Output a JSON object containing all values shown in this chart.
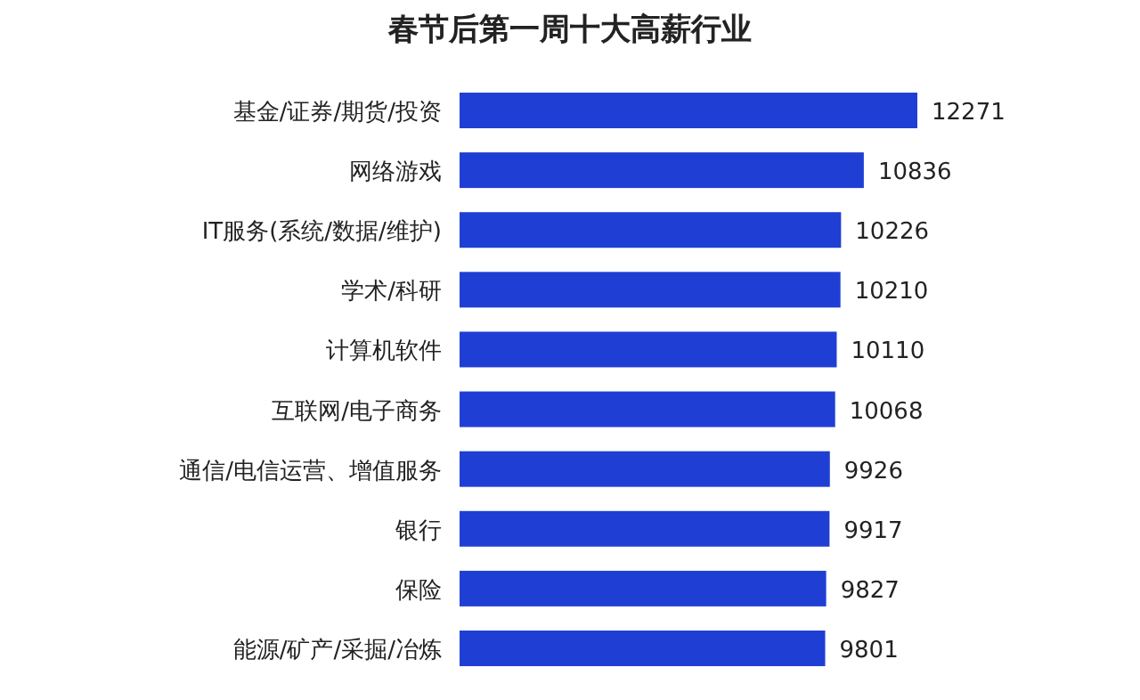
{
  "chart_data": {
    "type": "bar",
    "orientation": "horizontal",
    "title": "春节后第一周十大高薪行业",
    "categories": [
      "基金/证券/期货/投资",
      "网络游戏",
      "IT服务(系统/数据/维护)",
      "学术/科研",
      "计算机软件",
      "互联网/电子商务",
      "通信/电信运营、增值服务",
      "银行",
      "保险",
      "能源/矿产/采掘/冶炼"
    ],
    "values": [
      12271,
      10836,
      10226,
      10210,
      10110,
      10068,
      9926,
      9917,
      9827,
      9801
    ],
    "color": "#1f3fd4",
    "data_labels": true
  }
}
